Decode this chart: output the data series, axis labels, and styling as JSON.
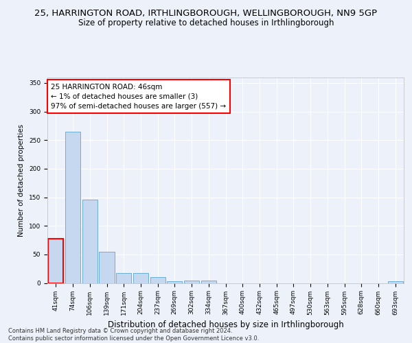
{
  "title": "25, HARRINGTON ROAD, IRTHLINGBOROUGH, WELLINGBOROUGH, NN9 5GP",
  "subtitle": "Size of property relative to detached houses in Irthlingborough",
  "xlabel": "Distribution of detached houses by size in Irthlingborough",
  "ylabel": "Number of detached properties",
  "categories": [
    "41sqm",
    "74sqm",
    "106sqm",
    "139sqm",
    "171sqm",
    "204sqm",
    "237sqm",
    "269sqm",
    "302sqm",
    "334sqm",
    "367sqm",
    "400sqm",
    "432sqm",
    "465sqm",
    "497sqm",
    "530sqm",
    "563sqm",
    "595sqm",
    "628sqm",
    "660sqm",
    "693sqm"
  ],
  "values": [
    77,
    265,
    146,
    55,
    18,
    18,
    10,
    3,
    4,
    4,
    0,
    0,
    0,
    0,
    0,
    0,
    0,
    0,
    0,
    0,
    3
  ],
  "bar_color": "#c5d8f0",
  "bar_edge_color": "#6aaed6",
  "highlight_bar_index": 0,
  "highlight_edge_color": "#ff0000",
  "annotation_text": "25 HARRINGTON ROAD: 46sqm\n← 1% of detached houses are smaller (3)\n97% of semi-detached houses are larger (557) →",
  "annotation_box_color": "#ffffff",
  "annotation_box_edge": "#ff0000",
  "ylim": [
    0,
    360
  ],
  "yticks": [
    0,
    50,
    100,
    150,
    200,
    250,
    300,
    350
  ],
  "footer": "Contains HM Land Registry data © Crown copyright and database right 2024.\nContains public sector information licensed under the Open Government Licence v3.0.",
  "background_color": "#edf2fa",
  "plot_background": "#edf2fa",
  "grid_color": "#ffffff",
  "title_fontsize": 9.5,
  "subtitle_fontsize": 8.5,
  "xlabel_fontsize": 8.5,
  "ylabel_fontsize": 7.5,
  "tick_fontsize": 6.5,
  "ann_fontsize": 7.5
}
